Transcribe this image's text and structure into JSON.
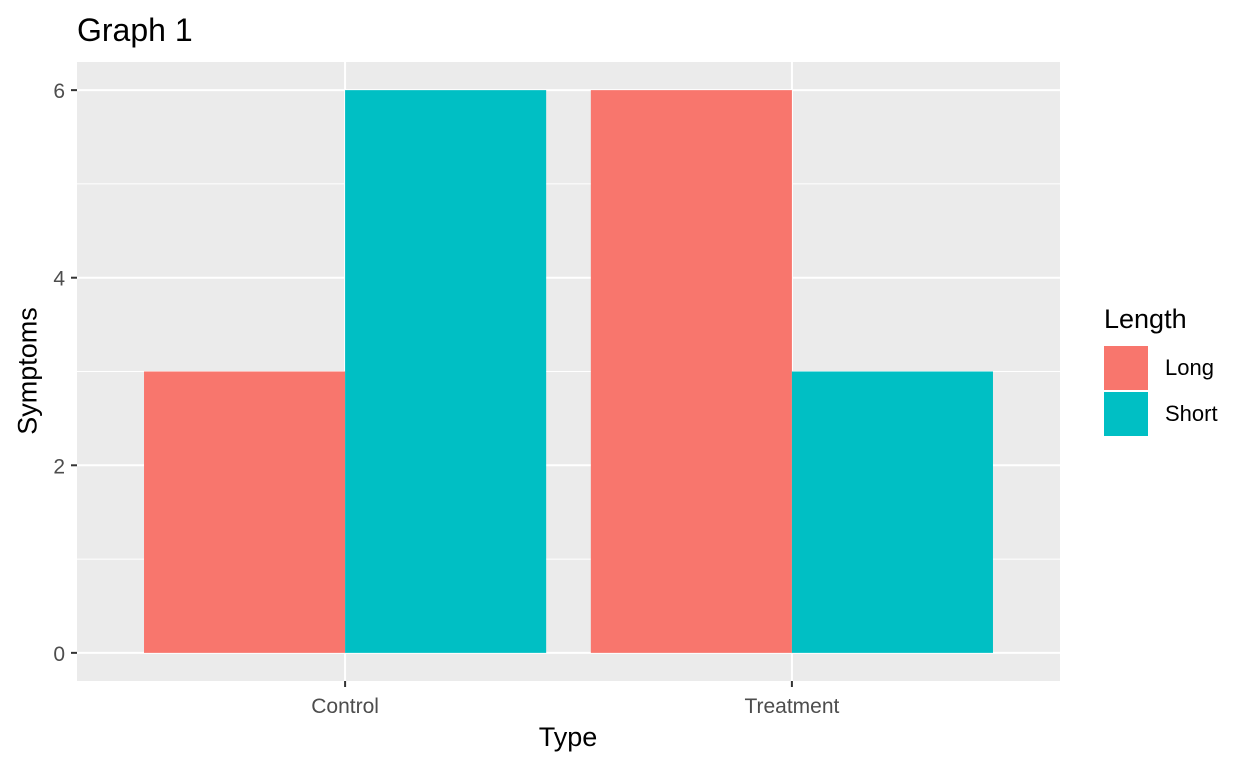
{
  "chart_data": {
    "type": "bar",
    "title": "Graph 1",
    "xlabel": "Type",
    "ylabel": "Symptoms",
    "categories": [
      "Control",
      "Treatment"
    ],
    "series": [
      {
        "name": "Long",
        "values": [
          3,
          6
        ],
        "color": "#F8766D"
      },
      {
        "name": "Short",
        "values": [
          6,
          3
        ],
        "color": "#00BFC4"
      }
    ],
    "ylim": [
      0,
      6
    ],
    "yticks": [
      0,
      2,
      4,
      6
    ],
    "grid": true,
    "legend": {
      "title": "Length",
      "placement": "right"
    },
    "panel_background": "#EBEBEB",
    "grid_color": "#FFFFFF"
  }
}
